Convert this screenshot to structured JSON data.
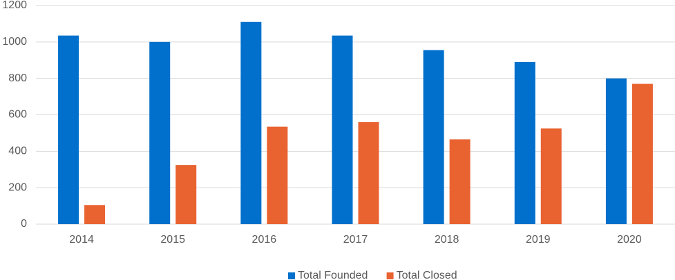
{
  "chart_data": {
    "type": "bar",
    "categories": [
      "2014",
      "2015",
      "2016",
      "2017",
      "2018",
      "2019",
      "2020"
    ],
    "series": [
      {
        "name": "Total Founded",
        "color": "#0070cc",
        "values": [
          1035,
          1000,
          1110,
          1035,
          955,
          890,
          800
        ]
      },
      {
        "name": "Total Closed",
        "color": "#e96331",
        "values": [
          105,
          325,
          535,
          560,
          465,
          525,
          770
        ]
      }
    ],
    "ylim": [
      0,
      1200
    ],
    "yticks": [
      0,
      200,
      400,
      600,
      800,
      1000,
      1200
    ],
    "grid": true,
    "legend": "bottom"
  }
}
